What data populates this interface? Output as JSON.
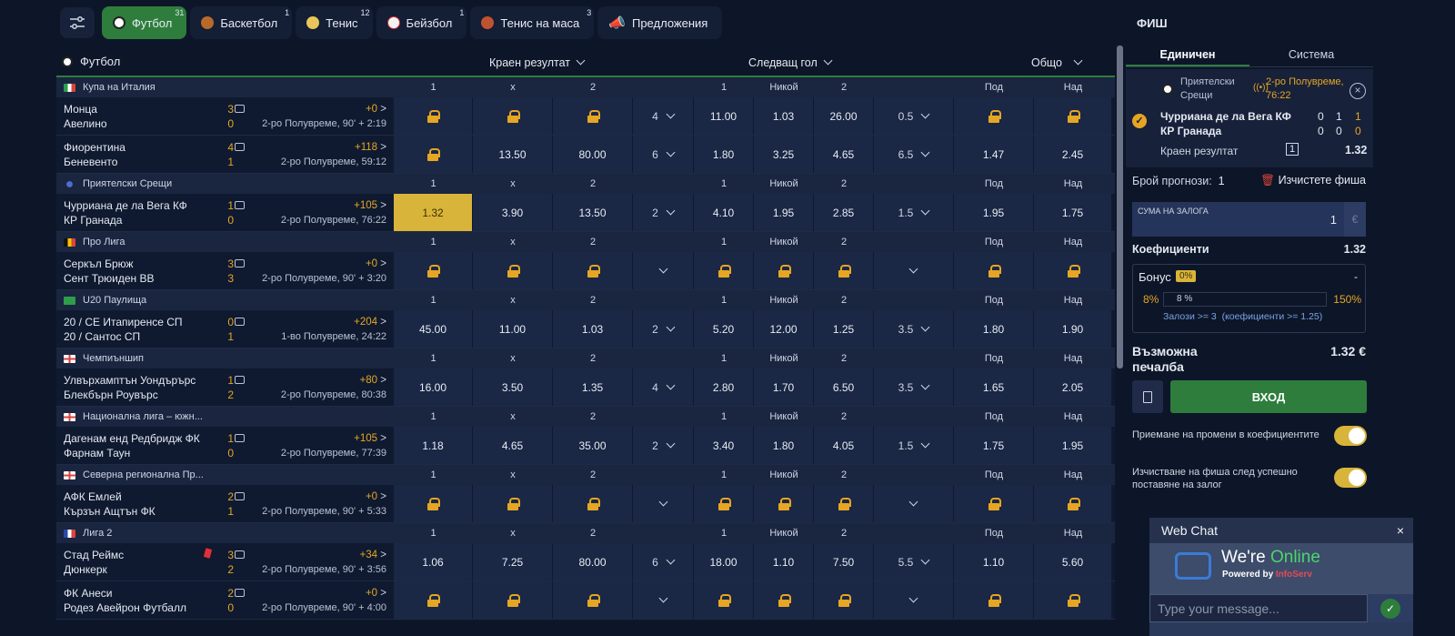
{
  "topbar": {
    "tabs": [
      {
        "label": "Футбол",
        "count": "31",
        "active": true,
        "icon": "football-icon"
      },
      {
        "label": "Баскетбол",
        "count": "1",
        "icon": "basketball-icon"
      },
      {
        "label": "Тенис",
        "count": "12",
        "icon": "tennis-icon"
      },
      {
        "label": "Бейзбол",
        "count": "1",
        "icon": "baseball-icon"
      },
      {
        "label": "Тенис на маса",
        "count": "3",
        "icon": "table-tennis-icon"
      },
      {
        "label": "Предложения",
        "count": "",
        "icon": "megaphone-icon"
      }
    ]
  },
  "main": {
    "sport_title": "Футбол",
    "markets": [
      "Краен резултат",
      "Следващ гол",
      "Общо"
    ],
    "col_labels": [
      "1",
      "x",
      "2",
      "1",
      "Никой",
      "2",
      "Под",
      "Над"
    ],
    "leagues": [
      {
        "name": "Купа на Италия",
        "flag": "it",
        "matches": [
          {
            "home": "Монца",
            "away": "Авелино",
            "s1": "3",
            "s2": "0",
            "more": "+0",
            "time": "2-ро Полувреме, 90' + 2:19",
            "odds": [
              "L",
              "L",
              "L",
              "4",
              "11.00",
              "1.03",
              "26.00",
              "0.5",
              "L",
              "L"
            ]
          },
          {
            "home": "Фиорентина",
            "away": "Беневенто",
            "s1": "4",
            "s2": "1",
            "more": "+118",
            "time": "2-ро Полувреме, 59:12",
            "odds": [
              "L",
              "13.50",
              "80.00",
              "6",
              "1.80",
              "3.25",
              "4.65",
              "6.5",
              "1.47",
              "2.45"
            ]
          }
        ]
      },
      {
        "name": "Приятелски Срещи",
        "flag": "intl",
        "matches": [
          {
            "home": "Чурриана де ла Вега КФ",
            "away": "КР Гранада",
            "s1": "1",
            "s2": "0",
            "more": "+105",
            "time": "2-ро Полувреме, 76:22",
            "odds": [
              "1.32",
              "3.90",
              "13.50",
              "2",
              "4.10",
              "1.95",
              "2.85",
              "1.5",
              "1.95",
              "1.75"
            ],
            "selected": 0
          }
        ]
      },
      {
        "name": "Про Лига",
        "flag": "be",
        "matches": [
          {
            "home": "Серкъл Брюж",
            "away": "Сент Трюиден ВВ",
            "s1": "3",
            "s2": "3",
            "more": "+0",
            "time": "2-ро Полувреме, 90' + 3:20",
            "odds": [
              "L",
              "L",
              "L",
              "",
              "L",
              "L",
              "L",
              "",
              "L",
              "L"
            ]
          }
        ]
      },
      {
        "name": "U20 Паулища",
        "flag": "br",
        "matches": [
          {
            "home": "20 / СЕ Итапиренсе СП",
            "away": "20 / Сантос СП",
            "s1": "0",
            "s2": "1",
            "more": "+204",
            "time": "1-во Полувреме, 24:22",
            "odds": [
              "45.00",
              "11.00",
              "1.03",
              "2",
              "5.20",
              "12.00",
              "1.25",
              "3.5",
              "1.80",
              "1.90"
            ]
          }
        ]
      },
      {
        "name": "Чемпиъншип",
        "flag": "en",
        "matches": [
          {
            "home": "Улвърхамптън Уондърърс",
            "away": "Блекбърн Роувърс",
            "s1": "1",
            "s2": "2",
            "more": "+80",
            "time": "2-ро Полувреме, 80:38",
            "odds": [
              "16.00",
              "3.50",
              "1.35",
              "4",
              "2.80",
              "1.70",
              "6.50",
              "3.5",
              "1.65",
              "2.05"
            ]
          }
        ]
      },
      {
        "name": "Национална лига – южн...",
        "flag": "en",
        "matches": [
          {
            "home": "Дагенам енд Редбридж ФК",
            "away": "Фарнам Таун",
            "s1": "1",
            "s2": "0",
            "more": "+105",
            "time": "2-ро Полувреме, 77:39",
            "odds": [
              "1.18",
              "4.65",
              "35.00",
              "2",
              "3.40",
              "1.80",
              "4.05",
              "1.5",
              "1.75",
              "1.95"
            ]
          }
        ]
      },
      {
        "name": "Северна регионална Пр...",
        "flag": "en",
        "matches": [
          {
            "home": "АФК Емлей",
            "away": "Кързън Ащтън ФК",
            "s1": "2",
            "s2": "1",
            "more": "+0",
            "time": "2-ро Полувреме, 90' + 5:33",
            "odds": [
              "L",
              "L",
              "L",
              "",
              "L",
              "L",
              "L",
              "",
              "L",
              "L"
            ]
          }
        ]
      },
      {
        "name": "Лига 2",
        "flag": "fr",
        "matches": [
          {
            "home": "Стад Реймс",
            "away": "Дюнкерк",
            "s1": "3",
            "s2": "2",
            "more": "+34",
            "time": "2-ро Полувреме, 90' + 3:56",
            "redcard": true,
            "odds": [
              "1.06",
              "7.25",
              "80.00",
              "6",
              "18.00",
              "1.10",
              "7.50",
              "5.5",
              "1.10",
              "5.60"
            ]
          },
          {
            "home": "ФК Анеси",
            "away": "Родез Авейрон Футбалл",
            "s1": "2",
            "s2": "0",
            "more": "+0",
            "time": "2-ро Полувреме, 90' + 4:00",
            "odds": [
              "L",
              "L",
              "L",
              "",
              "L",
              "L",
              "L",
              "",
              "L",
              "L"
            ]
          }
        ]
      }
    ]
  },
  "slip": {
    "title": "ФИШ",
    "tabs": [
      "Единичен",
      "Система"
    ],
    "league": "Приятелски Срещи",
    "period": "2-ро Полувреме, 76:22",
    "home": "Чурриана де ла Вега КФ",
    "away": "КР Гранада",
    "home_scores": [
      "0",
      "1",
      "1"
    ],
    "away_scores": [
      "0",
      "0",
      "0"
    ],
    "market": "Краен резултат",
    "pick": "1",
    "odd": "1.32",
    "count_label": "Брой прогнози:",
    "count": "1",
    "clear_label": "Изчистете фиша",
    "stake_label": "СУМА НА ЗАЛОГА",
    "stake_value": "1",
    "currency": "€",
    "coef_label": "Коефициенти",
    "coef_value": "1.32",
    "bonus_label": "Бонус",
    "bonus_badge": "0%",
    "bonus_dash": "-",
    "bonus_min": "8%",
    "bonus_bar": "8 %",
    "bonus_max": "150%",
    "bonus_note": "Залози >= 3  (коефициенти >= 1.25)",
    "win_label": "Възможна печалба",
    "win_value": "1.32 €",
    "enter_label": "ВХОД",
    "opt1": "Приемане на промени в коефициентите",
    "opt2": "Изчистване на фиша след успешно поставяне на залог"
  },
  "chat": {
    "title": "Web Chat",
    "banner_a": "We're ",
    "banner_b": "Online",
    "powered": "Powered by ",
    "powered_brand": "InfoServ",
    "placeholder": "Type your message..."
  }
}
